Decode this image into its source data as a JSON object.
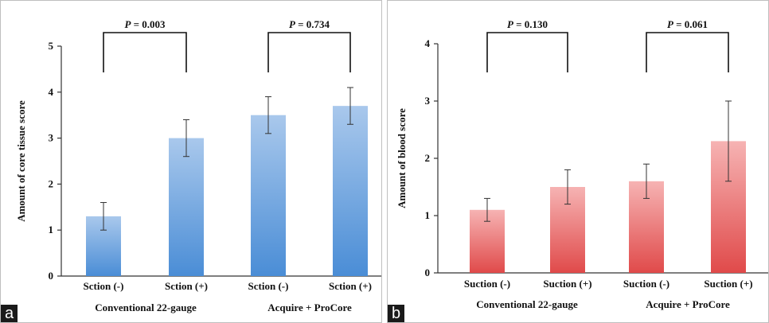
{
  "chart_data": [
    {
      "type": "bar",
      "panel_label": "a",
      "ylabel": "Amount of core tissue score",
      "ylim": [
        0,
        5
      ],
      "yticks": [
        "0",
        "1",
        "2",
        "3",
        "4",
        "5"
      ],
      "categories": [
        "Sction (-)",
        "Sction (+)",
        "Sction (-)",
        "Sction (+)"
      ],
      "groups": [
        "Conventional 22-gauge",
        "Acquire + ProCore"
      ],
      "values": [
        1.3,
        3.0,
        3.5,
        3.7
      ],
      "errors": [
        0.3,
        0.4,
        0.4,
        0.4
      ],
      "comparisons": [
        {
          "label_prefix": "P",
          "label_value": " = 0.003"
        },
        {
          "label_prefix": "P",
          "label_value": " = 0.734"
        }
      ],
      "bar_color_top": "#a9c8ec",
      "bar_color_bottom": "#4a8dd6",
      "grid": false
    },
    {
      "type": "bar",
      "panel_label": "b",
      "ylabel": "Amount of blood score",
      "ylim": [
        0,
        4
      ],
      "yticks": [
        "0",
        "1",
        "2",
        "3",
        "4"
      ],
      "categories": [
        "Suction (-)",
        "Suction (+)",
        "Suction (-)",
        "Suction (+)"
      ],
      "groups": [
        "Conventional 22-gauge",
        "Acquire + ProCore"
      ],
      "values": [
        1.1,
        1.5,
        1.6,
        2.3
      ],
      "errors": [
        0.2,
        0.3,
        0.3,
        0.7
      ],
      "comparisons": [
        {
          "label_prefix": "P",
          "label_value": " = 0.130"
        },
        {
          "label_prefix": "P",
          "label_value": " = 0.061"
        }
      ],
      "bar_color_top": "#f6b3b3",
      "bar_color_bottom": "#e04a4a",
      "grid": false
    }
  ]
}
